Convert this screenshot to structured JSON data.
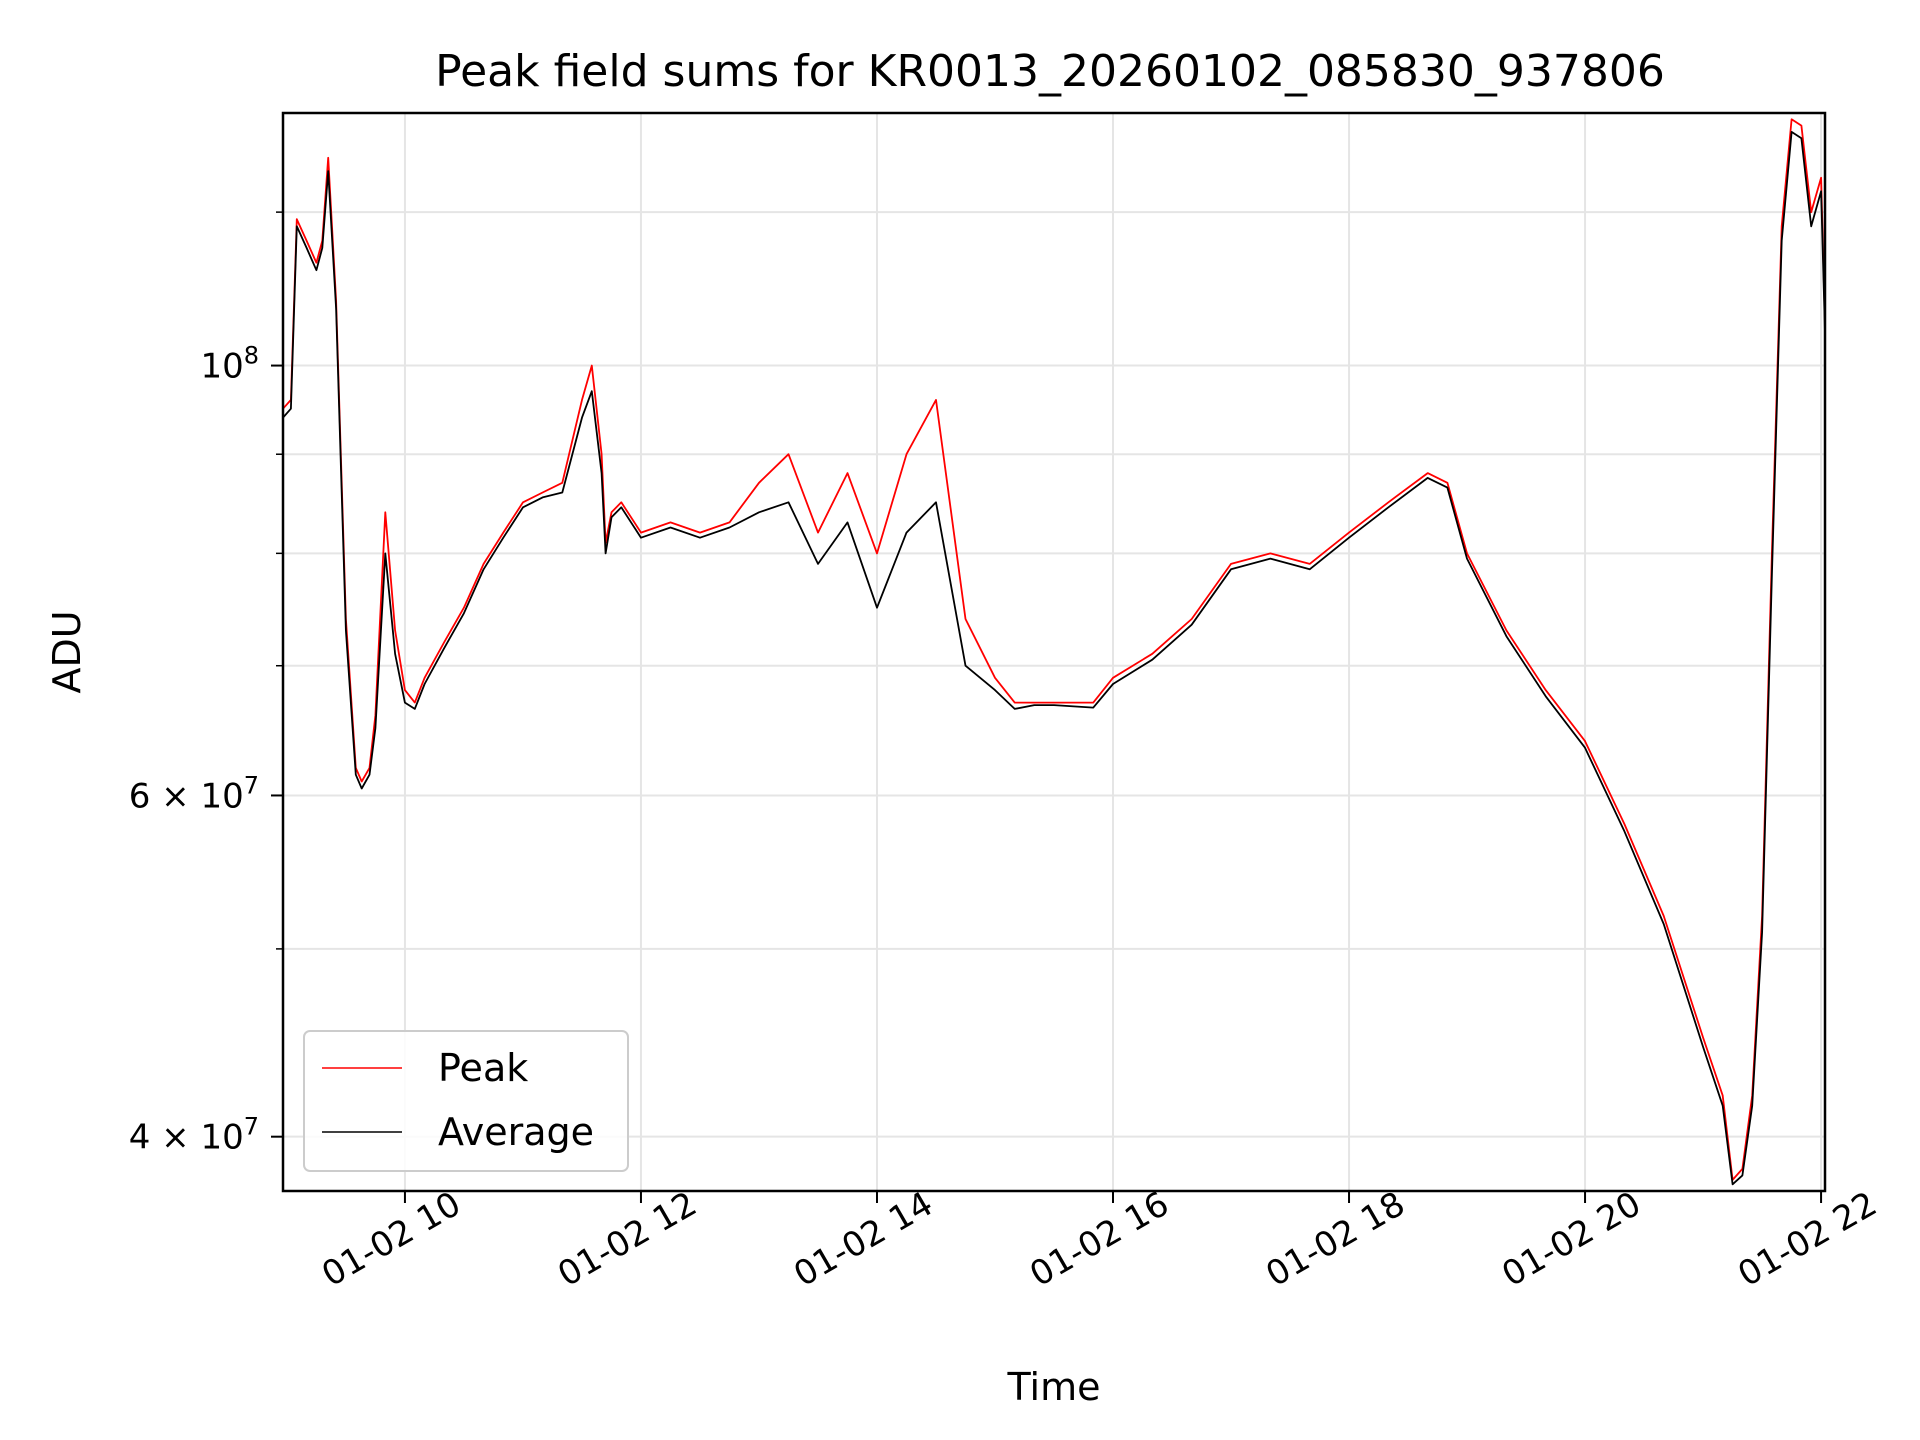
{
  "chart_data": {
    "type": "line",
    "title": "Peak field sums for KR0013_20260102_085830_937806",
    "xlabel": "Time",
    "ylabel": "ADU",
    "xlim": [
      "01-02 08:58",
      "01-02 22:02"
    ],
    "ylim": [
      37500000,
      135000000
    ],
    "yscale": "log",
    "grid": true,
    "legend_position": "lower-left",
    "x_tick_labels": [
      "01-02 10",
      "01-02 12",
      "01-02 14",
      "01-02 16",
      "01-02 18",
      "01-02 20",
      "01-02 22"
    ],
    "y_major_ticks": [
      {
        "value": 100000000,
        "base": "10",
        "exp": "8"
      },
      {
        "value": 60000000,
        "base": "6 × 10",
        "exp": "7"
      },
      {
        "value": 40000000,
        "base": "4 × 10",
        "exp": "7"
      }
    ],
    "y_minor_ticks": [
      50000000,
      70000000,
      80000000,
      90000000,
      120000000
    ],
    "x": [
      "08:58",
      "09:02",
      "09:05",
      "09:10",
      "09:15",
      "09:18",
      "09:21",
      "09:25",
      "09:30",
      "09:35",
      "09:38",
      "09:42",
      "09:45",
      "09:50",
      "09:55",
      "10:00",
      "10:05",
      "10:10",
      "10:20",
      "10:30",
      "10:40",
      "10:50",
      "11:00",
      "11:10",
      "11:20",
      "11:30",
      "11:35",
      "11:40",
      "11:42",
      "11:45",
      "11:50",
      "12:00",
      "12:15",
      "12:30",
      "12:45",
      "13:00",
      "13:15",
      "13:30",
      "13:45",
      "14:00",
      "14:15",
      "14:30",
      "14:45",
      "15:00",
      "15:10",
      "15:20",
      "15:30",
      "15:40",
      "15:50",
      "16:00",
      "16:20",
      "16:40",
      "17:00",
      "17:20",
      "17:40",
      "18:00",
      "18:20",
      "18:40",
      "18:50",
      "19:00",
      "19:20",
      "19:40",
      "20:00",
      "20:20",
      "20:40",
      "21:00",
      "21:10",
      "21:15",
      "21:20",
      "21:25",
      "21:30",
      "21:35",
      "21:40",
      "21:45",
      "21:50",
      "21:55",
      "22:00",
      "22:02"
    ],
    "series": [
      {
        "name": "Peak",
        "color": "#ff0000",
        "values": [
          95000000,
          96000000,
          119000000,
          116000000,
          113000000,
          116000000,
          128000000,
          108000000,
          74000000,
          62000000,
          61000000,
          62000000,
          66000000,
          84000000,
          73000000,
          68000000,
          67000000,
          69000000,
          72000000,
          75000000,
          79000000,
          82000000,
          85000000,
          86000000,
          87000000,
          96000000,
          100000000,
          90000000,
          81000000,
          84000000,
          85000000,
          82000000,
          83000000,
          82000000,
          83000000,
          87000000,
          90000000,
          82000000,
          88000000,
          80000000,
          90000000,
          96000000,
          74000000,
          69000000,
          67000000,
          67000000,
          67000000,
          67000000,
          67000000,
          69000000,
          71000000,
          74000000,
          79000000,
          80000000,
          79000000,
          82000000,
          85000000,
          88000000,
          87000000,
          80000000,
          73000000,
          68000000,
          64000000,
          58000000,
          52000000,
          45000000,
          42000000,
          38000000,
          38500000,
          42000000,
          52000000,
          80000000,
          118000000,
          134000000,
          133000000,
          120000000,
          125000000,
          105000000
        ]
      },
      {
        "name": "Average",
        "color": "#000000",
        "values": [
          94000000,
          95000000,
          118000000,
          115000000,
          112000000,
          115000000,
          126000000,
          107000000,
          73000000,
          61500000,
          60500000,
          61500000,
          65000000,
          80000000,
          71000000,
          67000000,
          66500000,
          68500000,
          71500000,
          74500000,
          78500000,
          81500000,
          84500000,
          85500000,
          86000000,
          94000000,
          97000000,
          88000000,
          80000000,
          83500000,
          84500000,
          81500000,
          82500000,
          81500000,
          82500000,
          84000000,
          85000000,
          79000000,
          83000000,
          75000000,
          82000000,
          85000000,
          70000000,
          68000000,
          66500000,
          66800000,
          66800000,
          66700000,
          66600000,
          68500000,
          70500000,
          73500000,
          78500000,
          79500000,
          78500000,
          81500000,
          84500000,
          87500000,
          86500000,
          79500000,
          72500000,
          67500000,
          63500000,
          57500000,
          51500000,
          44500000,
          41500000,
          37800000,
          38200000,
          41500000,
          51000000,
          78000000,
          116000000,
          132000000,
          131000000,
          118000000,
          123000000,
          104000000
        ]
      }
    ]
  }
}
